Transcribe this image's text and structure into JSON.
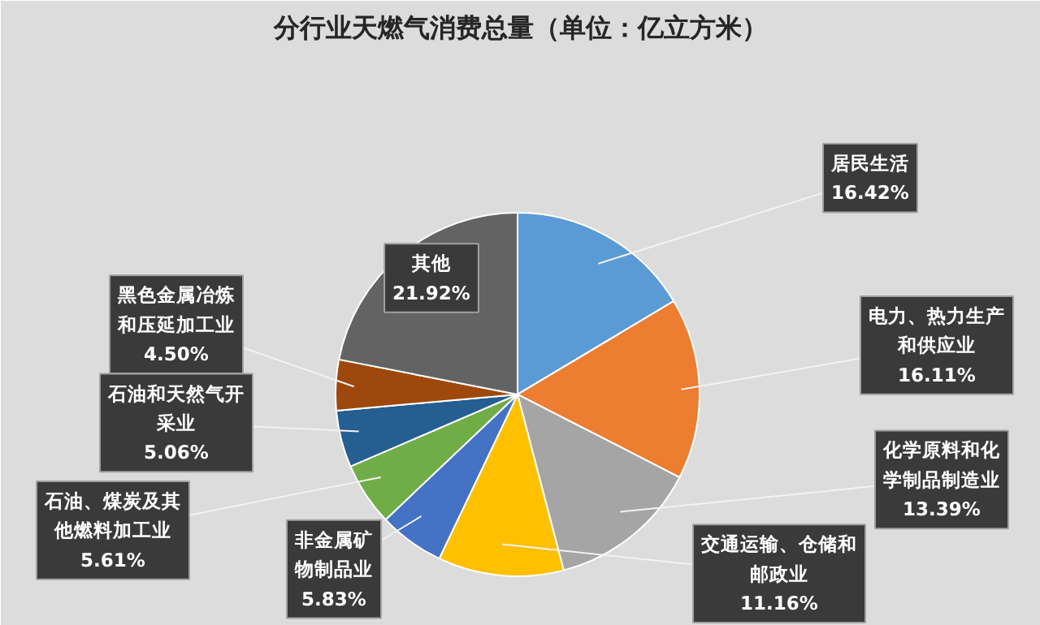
{
  "chart_data": {
    "type": "pie",
    "title": "分行业天燃气消费总量（单位：亿立方米）",
    "categories": [
      "居民生活",
      "电力、热力生产和供应业",
      "化学原料和化学制品制造业",
      "交通运输、仓储和邮政业",
      "非金属矿物制品业",
      "石油、煤炭及其他燃料加工业",
      "石油和天然气开采业",
      "黑色金属冶炼和压延加工业",
      "其他"
    ],
    "values": [
      16.42,
      16.11,
      13.39,
      11.16,
      5.83,
      5.61,
      5.06,
      4.5,
      21.92
    ],
    "value_labels": [
      "16.42%",
      "16.11%",
      "13.39%",
      "11.16%",
      "5.83%",
      "5.61%",
      "5.06%",
      "4.50%",
      "21.92%"
    ],
    "colors": [
      "#5b9bd5",
      "#ed7d31",
      "#a5a5a5",
      "#ffc000",
      "#4472c4",
      "#70ad47",
      "#255e91",
      "#9e480e",
      "#636363"
    ]
  }
}
